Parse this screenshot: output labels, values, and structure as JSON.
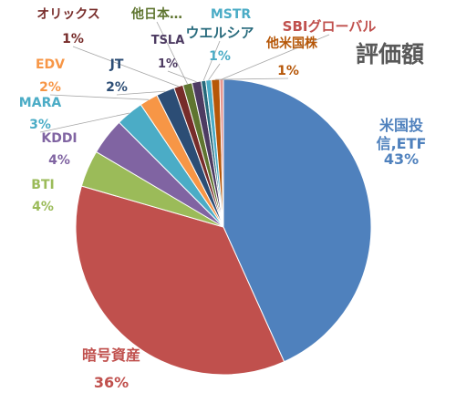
{
  "chart_data": {
    "type": "pie",
    "title": "評価額",
    "slices": [
      {
        "name": "米国投信,ETF",
        "name_lines": [
          "米国投",
          "信,ETF"
        ],
        "value": 43,
        "label": "43%",
        "color": "#4f81bd",
        "label_color": "#4f81bd"
      },
      {
        "name": "暗号資産",
        "value": 36,
        "label": "36%",
        "color": "#c0504d",
        "label_color": "#c0504d"
      },
      {
        "name": "BTI",
        "value": 4,
        "label": "4%",
        "color": "#9bbb59",
        "label_color": "#9bbb59"
      },
      {
        "name": "KDDI",
        "value": 4,
        "label": "4%",
        "color": "#8064a2",
        "label_color": "#8064a2"
      },
      {
        "name": "MARA",
        "value": 3,
        "label": "3%",
        "color": "#4bacc6",
        "label_color": "#4bacc6"
      },
      {
        "name": "EDV",
        "value": 2,
        "label": "2%",
        "color": "#f79646",
        "label_color": "#f79646"
      },
      {
        "name": "JT",
        "value": 2,
        "label": "2%",
        "color": "#2c4d75",
        "label_color": "#2c4d75"
      },
      {
        "name": "オリックス",
        "value": 1,
        "label": "1%",
        "color": "#772c2a",
        "label_color": "#772c2a"
      },
      {
        "name": "他日本…",
        "value": 1,
        "label": "",
        "color": "#5f7530",
        "label_color": "#5f7530"
      },
      {
        "name": "TSLA",
        "value": 1,
        "label": "1%",
        "color": "#4d3b62",
        "label_color": "#4d3b62"
      },
      {
        "name": "ウエルシア",
        "value": 0.5,
        "label": "",
        "color": "#276a7c",
        "label_color": "#276a7c"
      },
      {
        "name": "MSTR",
        "value": 0.6,
        "label": "1%",
        "color": "#4bacc6",
        "label_color": "#4bacc6"
      },
      {
        "name": "他米国株",
        "value": 0.9,
        "label": "1%",
        "color": "#b65708",
        "label_color": "#b65708"
      },
      {
        "name": "SBIグローバル",
        "value": 0.4,
        "label": "",
        "color": "#e6968f",
        "label_color": "#c0504d"
      }
    ]
  }
}
